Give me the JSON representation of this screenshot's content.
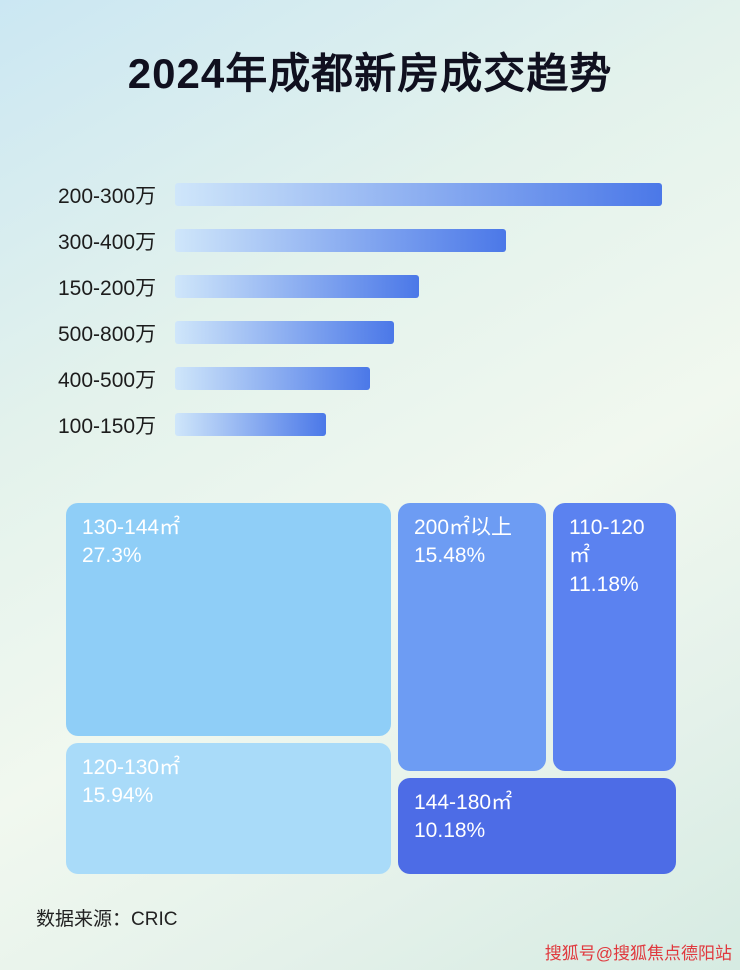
{
  "title": "2024年成都新房成交趋势",
  "chart_data": [
    {
      "type": "bar",
      "orientation": "horizontal",
      "title": "2024年成都新房成交趋势",
      "categories": [
        "200-300万",
        "300-400万",
        "150-200万",
        "500-800万",
        "400-500万",
        "100-150万"
      ],
      "values_relative_pct": [
        100,
        68,
        50,
        45,
        40,
        31
      ],
      "xlabel": "",
      "ylabel": "",
      "grid": false,
      "legend": false
    },
    {
      "type": "treemap",
      "items": [
        {
          "label": "130-144㎡",
          "value": "27.3%"
        },
        {
          "label": "200㎡以上",
          "value": "15.48%"
        },
        {
          "label": "110-120㎡",
          "value": "11.18%"
        },
        {
          "label": "120-130㎡",
          "value": "15.94%"
        },
        {
          "label": "144-180㎡",
          "value": "10.18%"
        }
      ]
    }
  ],
  "footer": {
    "source_label": "数据来源：CRIC"
  },
  "watermark": {
    "text": "搜狐号@搜狐焦点德阳站"
  },
  "colors": {
    "bar_gradient_start": "#cfe6fa",
    "bar_gradient_end": "#4b78e8",
    "treemap": [
      "#8fcef7",
      "#6d9cf3",
      "#5b82f0",
      "#a9dbf9",
      "#4d6ce6"
    ],
    "watermark_red": "#e0393e"
  }
}
